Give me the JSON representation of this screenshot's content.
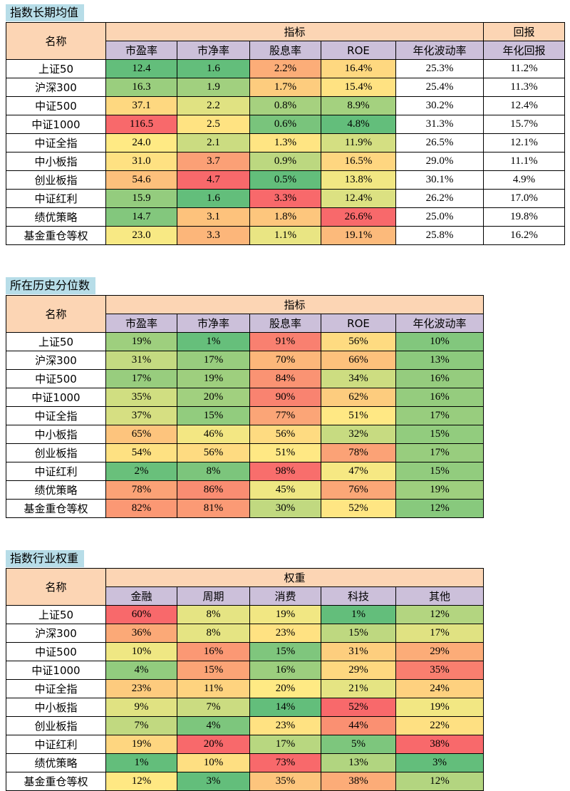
{
  "color_scale": [
    "#63be7b",
    "#ffeb84",
    "#f8696b"
  ],
  "tables": [
    {
      "title": "指数长期均值",
      "name_header": "名称",
      "groups": [
        {
          "label": "指标",
          "columns": [
            {
              "label": "市盈率",
              "heat": true
            },
            {
              "label": "市净率",
              "heat": true
            },
            {
              "label": "股息率",
              "heat": true
            },
            {
              "label": "ROE",
              "heat": true
            },
            {
              "label": "年化波动率",
              "heat": false
            }
          ]
        },
        {
          "label": "回报",
          "columns": [
            {
              "label": "年化回报",
              "heat": false
            }
          ]
        }
      ],
      "rows": [
        {
          "name": "上证50",
          "cells": [
            "12.4",
            "1.6",
            "2.2%",
            "16.4%",
            "25.3%",
            "11.2%"
          ]
        },
        {
          "name": "沪深300",
          "cells": [
            "16.3",
            "1.9",
            "1.7%",
            "15.4%",
            "25.4%",
            "11.3%"
          ]
        },
        {
          "name": "中证500",
          "cells": [
            "37.1",
            "2.2",
            "0.8%",
            "8.9%",
            "30.2%",
            "12.4%"
          ]
        },
        {
          "name": "中证1000",
          "cells": [
            "116.5",
            "2.5",
            "0.6%",
            "4.8%",
            "31.3%",
            "15.7%"
          ]
        },
        {
          "name": "中证全指",
          "cells": [
            "24.0",
            "2.1",
            "1.3%",
            "11.9%",
            "26.5%",
            "12.1%"
          ]
        },
        {
          "name": "中小板指",
          "cells": [
            "31.0",
            "3.7",
            "0.9%",
            "16.5%",
            "29.0%",
            "11.1%"
          ]
        },
        {
          "name": "创业板指",
          "cells": [
            "54.6",
            "4.7",
            "0.5%",
            "13.8%",
            "30.1%",
            "4.9%"
          ]
        },
        {
          "name": "中证红利",
          "cells": [
            "15.9",
            "1.6",
            "3.3%",
            "12.4%",
            "26.2%",
            "17.0%"
          ]
        },
        {
          "name": "绩优策略",
          "cells": [
            "14.7",
            "3.1",
            "1.8%",
            "26.6%",
            "25.0%",
            "19.8%"
          ]
        },
        {
          "name": "基金重仓等权",
          "cells": [
            "23.0",
            "3.3",
            "1.1%",
            "19.1%",
            "25.8%",
            "16.2%"
          ]
        }
      ]
    },
    {
      "title": "所在历史分位数",
      "name_header": "名称",
      "scale_range": [
        0,
        100
      ],
      "groups": [
        {
          "label": "指标",
          "columns": [
            {
              "label": "市盈率",
              "heat": true
            },
            {
              "label": "市净率",
              "heat": true
            },
            {
              "label": "股息率",
              "heat": true
            },
            {
              "label": "ROE",
              "heat": true
            },
            {
              "label": "年化波动率",
              "heat": true
            }
          ]
        }
      ],
      "rows": [
        {
          "name": "上证50",
          "cells": [
            "19%",
            "1%",
            "91%",
            "56%",
            "10%"
          ]
        },
        {
          "name": "沪深300",
          "cells": [
            "31%",
            "17%",
            "70%",
            "66%",
            "13%"
          ]
        },
        {
          "name": "中证500",
          "cells": [
            "17%",
            "19%",
            "84%",
            "34%",
            "16%"
          ]
        },
        {
          "name": "中证1000",
          "cells": [
            "35%",
            "20%",
            "90%",
            "62%",
            "16%"
          ]
        },
        {
          "name": "中证全指",
          "cells": [
            "37%",
            "15%",
            "77%",
            "51%",
            "17%"
          ]
        },
        {
          "name": "中小板指",
          "cells": [
            "65%",
            "46%",
            "56%",
            "32%",
            "15%"
          ]
        },
        {
          "name": "创业板指",
          "cells": [
            "54%",
            "56%",
            "51%",
            "78%",
            "17%"
          ]
        },
        {
          "name": "中证红利",
          "cells": [
            "2%",
            "8%",
            "98%",
            "47%",
            "15%"
          ]
        },
        {
          "name": "绩优策略",
          "cells": [
            "78%",
            "86%",
            "45%",
            "76%",
            "19%"
          ]
        },
        {
          "name": "基金重仓等权",
          "cells": [
            "82%",
            "81%",
            "30%",
            "52%",
            "12%"
          ]
        }
      ]
    },
    {
      "title": "指数行业权重",
      "name_header": "名称",
      "groups": [
        {
          "label": "权重",
          "columns": [
            {
              "label": "金融",
              "heat": true
            },
            {
              "label": "周期",
              "heat": true
            },
            {
              "label": "消费",
              "heat": true
            },
            {
              "label": "科技",
              "heat": true
            },
            {
              "label": "其他",
              "heat": true
            }
          ]
        }
      ],
      "rows": [
        {
          "name": "上证50",
          "cells": [
            "60%",
            "8%",
            "19%",
            "1%",
            "12%"
          ]
        },
        {
          "name": "沪深300",
          "cells": [
            "36%",
            "8%",
            "23%",
            "15%",
            "17%"
          ]
        },
        {
          "name": "中证500",
          "cells": [
            "10%",
            "16%",
            "15%",
            "31%",
            "29%"
          ]
        },
        {
          "name": "中证1000",
          "cells": [
            "4%",
            "15%",
            "16%",
            "29%",
            "35%"
          ]
        },
        {
          "name": "中证全指",
          "cells": [
            "23%",
            "11%",
            "20%",
            "21%",
            "24%"
          ]
        },
        {
          "name": "中小板指",
          "cells": [
            "9%",
            "7%",
            "14%",
            "52%",
            "19%"
          ]
        },
        {
          "name": "创业板指",
          "cells": [
            "7%",
            "4%",
            "23%",
            "44%",
            "22%"
          ]
        },
        {
          "name": "中证红利",
          "cells": [
            "19%",
            "20%",
            "17%",
            "5%",
            "38%"
          ]
        },
        {
          "name": "绩优策略",
          "cells": [
            "1%",
            "10%",
            "73%",
            "13%",
            "3%"
          ]
        },
        {
          "name": "基金重仓等权",
          "cells": [
            "12%",
            "3%",
            "35%",
            "38%",
            "12%"
          ]
        }
      ]
    }
  ]
}
